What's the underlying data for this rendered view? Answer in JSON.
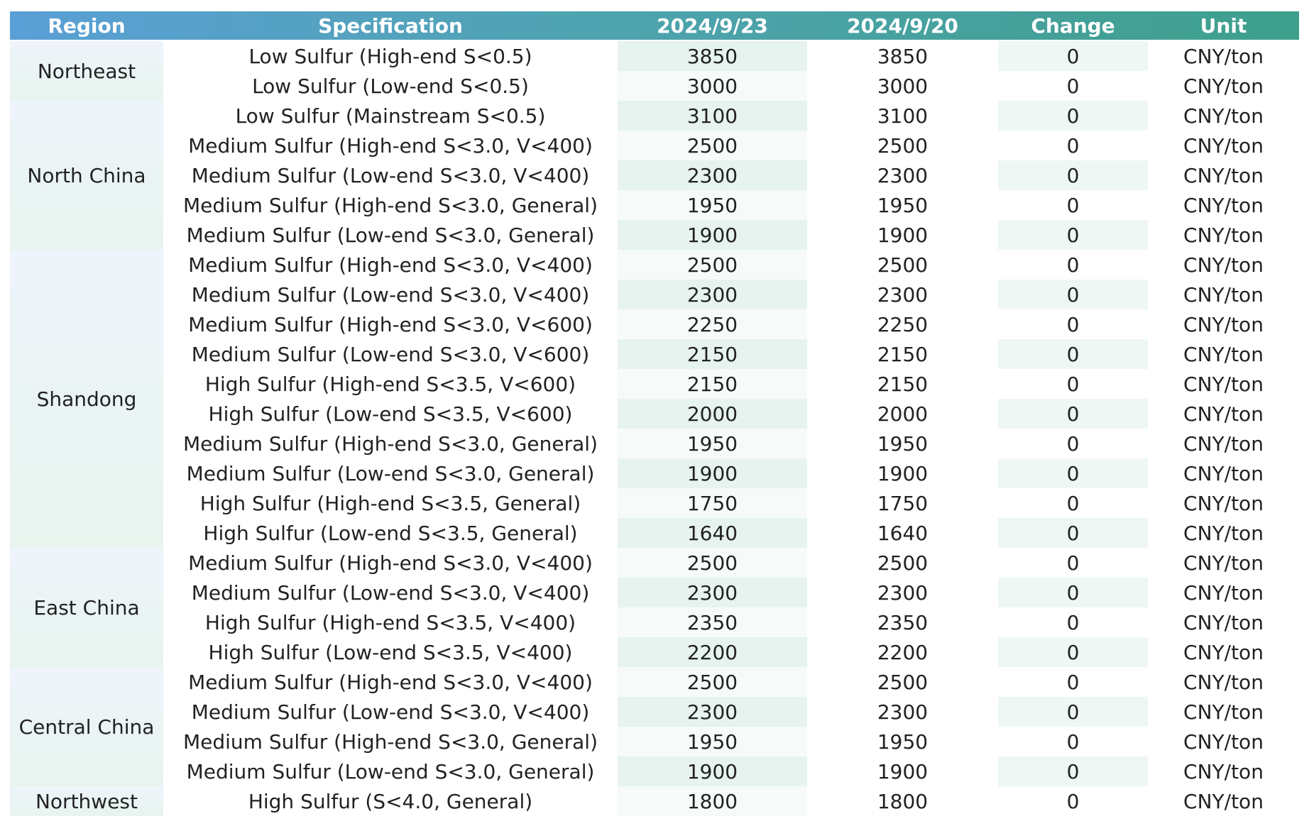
{
  "table": {
    "headers": [
      "Region",
      "Specification",
      "2024/9/23",
      "2024/9/20",
      "Change",
      "Unit"
    ],
    "regions": [
      {
        "name": "Northeast",
        "rows": [
          {
            "spec": "Low Sulfur (High-end S<0.5)",
            "v1": "3850",
            "v2": "3850",
            "change": "0",
            "unit": "CNY/ton"
          },
          {
            "spec": "Low Sulfur (Low-end S<0.5)",
            "v1": "3000",
            "v2": "3000",
            "change": "0",
            "unit": "CNY/ton"
          }
        ]
      },
      {
        "name": "North China",
        "rows": [
          {
            "spec": "Low Sulfur (Mainstream S<0.5)",
            "v1": "3100",
            "v2": "3100",
            "change": "0",
            "unit": "CNY/ton"
          },
          {
            "spec": "Medium Sulfur (High-end S<3.0, V<400)",
            "v1": "2500",
            "v2": "2500",
            "change": "0",
            "unit": "CNY/ton"
          },
          {
            "spec": "Medium Sulfur (Low-end S<3.0, V<400)",
            "v1": "2300",
            "v2": "2300",
            "change": "0",
            "unit": "CNY/ton"
          },
          {
            "spec": "Medium Sulfur (High-end S<3.0, General)",
            "v1": "1950",
            "v2": "1950",
            "change": "0",
            "unit": "CNY/ton"
          },
          {
            "spec": "Medium Sulfur (Low-end S<3.0, General)",
            "v1": "1900",
            "v2": "1900",
            "change": "0",
            "unit": "CNY/ton"
          }
        ]
      },
      {
        "name": "Shandong",
        "rows": [
          {
            "spec": "Medium Sulfur (High-end S<3.0, V<400)",
            "v1": "2500",
            "v2": "2500",
            "change": "0",
            "unit": "CNY/ton"
          },
          {
            "spec": "Medium Sulfur (Low-end S<3.0, V<400)",
            "v1": "2300",
            "v2": "2300",
            "change": "0",
            "unit": "CNY/ton"
          },
          {
            "spec": "Medium Sulfur (High-end S<3.0, V<600)",
            "v1": "2250",
            "v2": "2250",
            "change": "0",
            "unit": "CNY/ton"
          },
          {
            "spec": "Medium Sulfur (Low-end S<3.0, V<600)",
            "v1": "2150",
            "v2": "2150",
            "change": "0",
            "unit": "CNY/ton"
          },
          {
            "spec": "High Sulfur (High-end S<3.5, V<600)",
            "v1": "2150",
            "v2": "2150",
            "change": "0",
            "unit": "CNY/ton"
          },
          {
            "spec": "High Sulfur (Low-end S<3.5, V<600)",
            "v1": "2000",
            "v2": "2000",
            "change": "0",
            "unit": "CNY/ton"
          },
          {
            "spec": "Medium Sulfur (High-end S<3.0, General)",
            "v1": "1950",
            "v2": "1950",
            "change": "0",
            "unit": "CNY/ton"
          },
          {
            "spec": "Medium Sulfur (Low-end S<3.0, General)",
            "v1": "1900",
            "v2": "1900",
            "change": "0",
            "unit": "CNY/ton"
          },
          {
            "spec": "High Sulfur (High-end S<3.5, General)",
            "v1": "1750",
            "v2": "1750",
            "change": "0",
            "unit": "CNY/ton"
          },
          {
            "spec": "High Sulfur (Low-end S<3.5, General)",
            "v1": "1640",
            "v2": "1640",
            "change": "0",
            "unit": "CNY/ton"
          }
        ]
      },
      {
        "name": "East China",
        "rows": [
          {
            "spec": "Medium Sulfur (High-end S<3.0, V<400)",
            "v1": "2500",
            "v2": "2500",
            "change": "0",
            "unit": "CNY/ton"
          },
          {
            "spec": "Medium Sulfur (Low-end S<3.0, V<400)",
            "v1": "2300",
            "v2": "2300",
            "change": "0",
            "unit": "CNY/ton"
          },
          {
            "spec": "High Sulfur (High-end S<3.5, V<400)",
            "v1": "2350",
            "v2": "2350",
            "change": "0",
            "unit": "CNY/ton"
          },
          {
            "spec": "High Sulfur (Low-end S<3.5, V<400)",
            "v1": "2200",
            "v2": "2200",
            "change": "0",
            "unit": "CNY/ton"
          }
        ]
      },
      {
        "name": "Central China",
        "rows": [
          {
            "spec": "Medium Sulfur (High-end S<3.0, V<400)",
            "v1": "2500",
            "v2": "2500",
            "change": "0",
            "unit": "CNY/ton"
          },
          {
            "spec": "Medium Sulfur (Low-end S<3.0, V<400)",
            "v1": "2300",
            "v2": "2300",
            "change": "0",
            "unit": "CNY/ton"
          },
          {
            "spec": "Medium Sulfur (High-end S<3.0, General)",
            "v1": "1950",
            "v2": "1950",
            "change": "0",
            "unit": "CNY/ton"
          },
          {
            "spec": "Medium Sulfur (Low-end S<3.0, General)",
            "v1": "1900",
            "v2": "1900",
            "change": "0",
            "unit": "CNY/ton"
          }
        ]
      },
      {
        "name": "Northwest",
        "rows": [
          {
            "spec": "High Sulfur (S<4.0, General)",
            "v1": "1800",
            "v2": "1800",
            "change": "0",
            "unit": "CNY/ton"
          }
        ]
      }
    ]
  }
}
